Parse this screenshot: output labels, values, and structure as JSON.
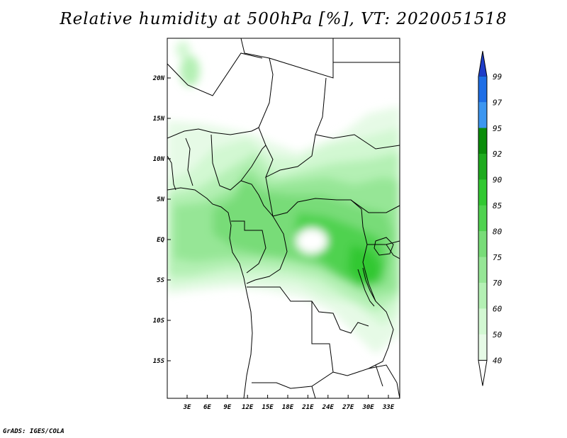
{
  "title": "Relative humidity at 500hPa [%], VT: 2020051518",
  "footer": "GrADS: IGES/COLA",
  "map": {
    "lat_labels": [
      "20N",
      "15N",
      "10N",
      "5N",
      "EQ",
      "5S",
      "10S",
      "15S"
    ],
    "lon_labels": [
      "3E",
      "6E",
      "9E",
      "12E",
      "15E",
      "18E",
      "21E",
      "24E",
      "27E",
      "30E",
      "33E"
    ]
  },
  "colorbar": {
    "labels": [
      "99",
      "97",
      "95",
      "92",
      "90",
      "85",
      "80",
      "75",
      "70",
      "60",
      "50",
      "40"
    ],
    "colors": [
      "#1e3cc8",
      "#1e6ee6",
      "#3c96f0",
      "#0a8c0a",
      "#1eaa1e",
      "#32c832",
      "#50d250",
      "#78dc78",
      "#96e696",
      "#b4f0b4",
      "#d2f8d2",
      "#e6fae6"
    ]
  },
  "colors": {
    "border": "#000000",
    "background": "#ffffff"
  }
}
